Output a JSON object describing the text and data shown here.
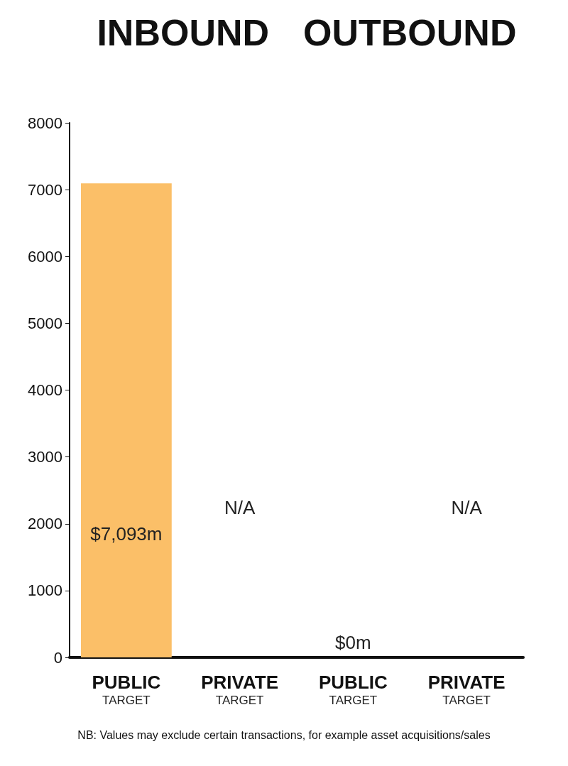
{
  "chart_data": {
    "type": "bar",
    "categories": [
      "PUBLIC\nTARGET",
      "PRIVATE\nTARGET",
      "PUBLIC\nTARGET",
      "PRIVATE\nTARGET"
    ],
    "values": [
      7093,
      null,
      0,
      null
    ],
    "value_labels": [
      "$7,093m",
      "N/A",
      "$0m",
      "N/A"
    ],
    "color": "#fbbf68",
    "ylim": [
      0,
      8000
    ],
    "yticks": [
      0,
      1000,
      2000,
      3000,
      4000,
      5000,
      6000,
      7000,
      8000
    ],
    "grid": false,
    "annotations": [
      "INBOUND",
      "OUTBOUND",
      "NB: Values may exclude certain transactions, for example asset acquisitions/sales"
    ]
  }
}
